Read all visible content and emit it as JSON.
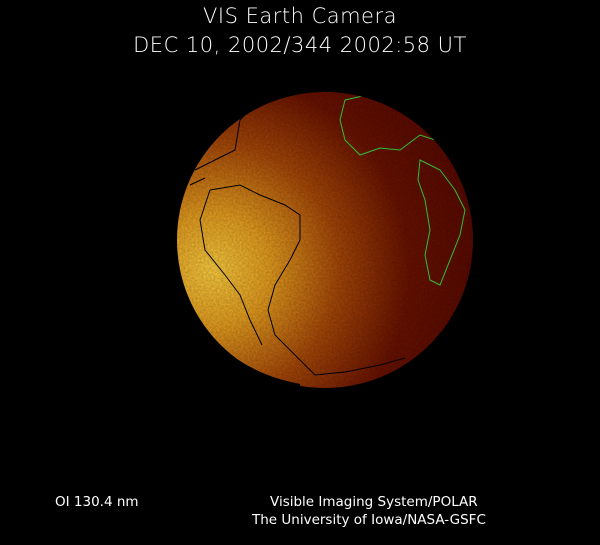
{
  "header": {
    "title": "VIS Earth Camera",
    "timestamp": "DEC 10, 2002/344 2002:58 UT"
  },
  "footer": {
    "wavelength": "OI  130.4 nm",
    "instrument": "Visible Imaging System/POLAR",
    "institution": "The University of Iowa/NASA-GSFC"
  },
  "colors": {
    "background": "#000000",
    "dayside": "#f0b020",
    "nightside": "#5a0a00",
    "coastline_night": "#30c030",
    "coastline_day": "#000000"
  }
}
